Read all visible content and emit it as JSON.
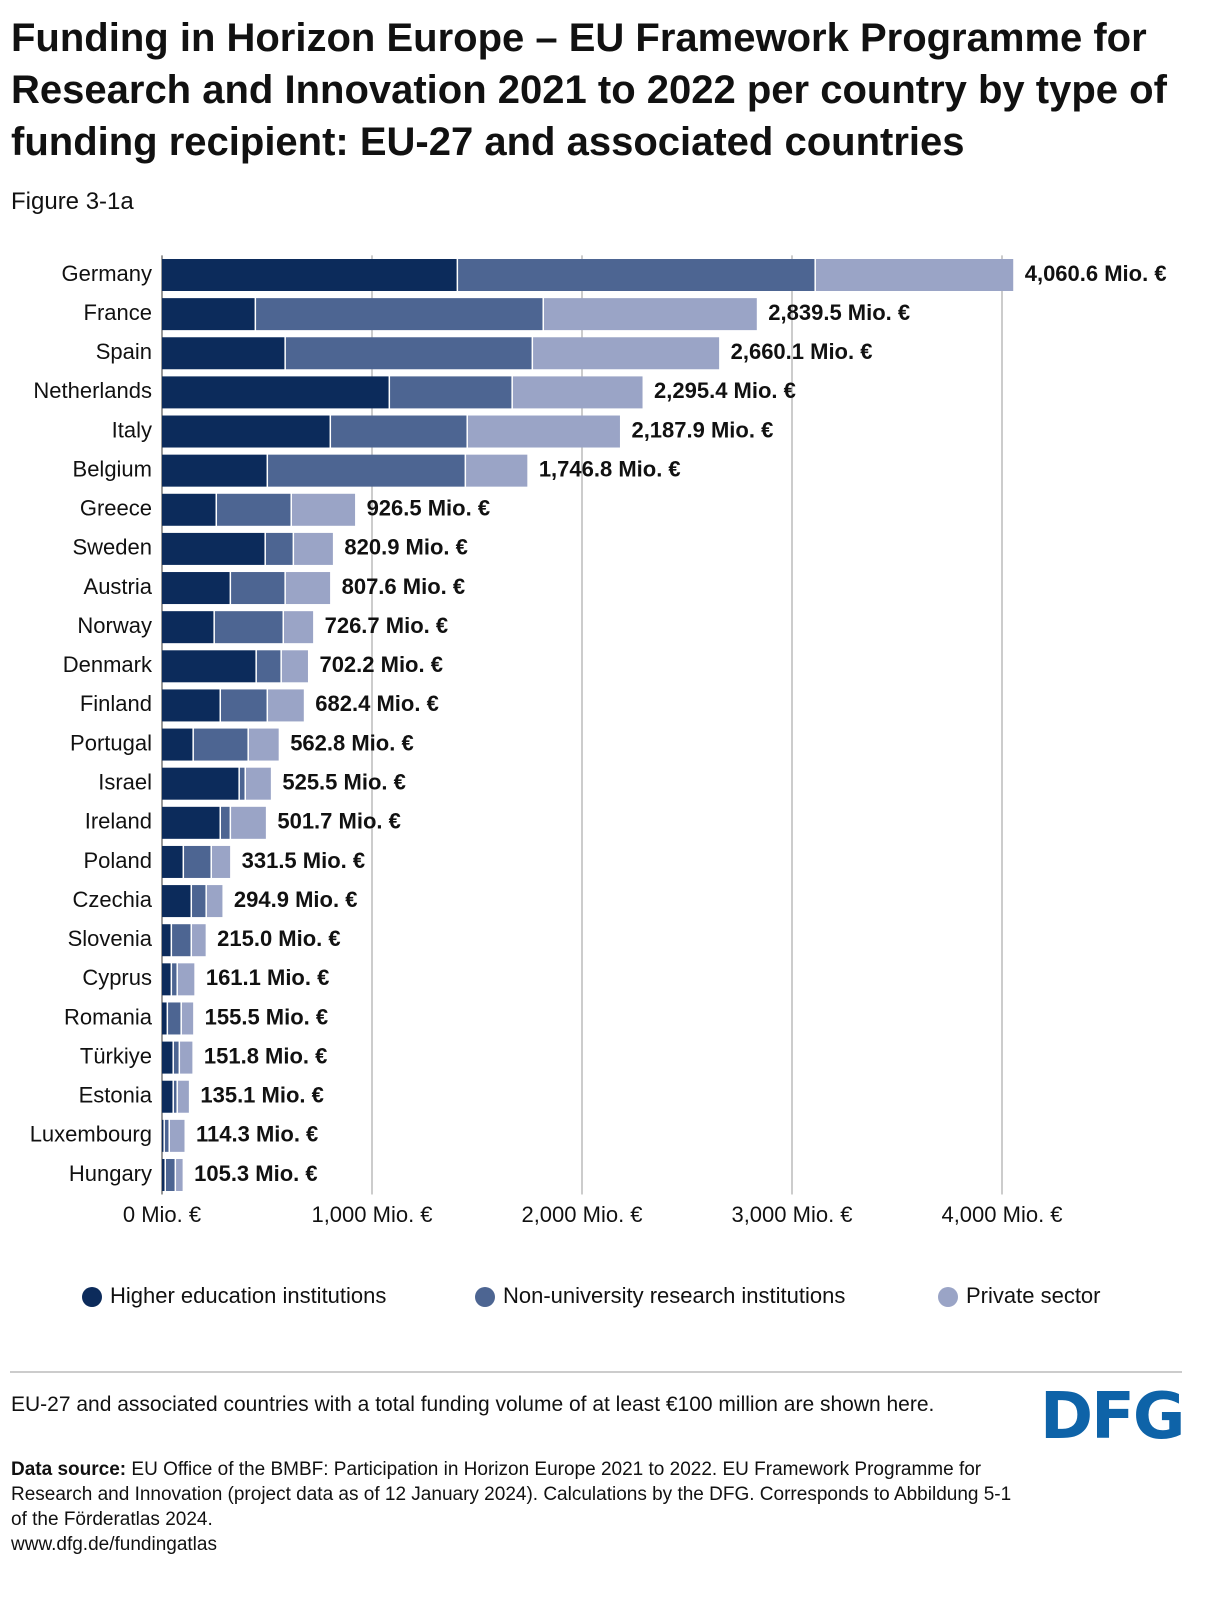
{
  "chart_data": {
    "type": "stacked-bar-horizontal",
    "title": "Funding in Horizon Europe – EU Framework Programme for Research and Innovation 2021 to 2022 per country by type of funding recipient: EU-27 and associated countries",
    "subtitle": "Figure 3-1a",
    "categories": [
      "Germany",
      "France",
      "Spain",
      "Netherlands",
      "Italy",
      "Belgium",
      "Greece",
      "Sweden",
      "Austria",
      "Norway",
      "Denmark",
      "Finland",
      "Portugal",
      "Israel",
      "Ireland",
      "Poland",
      "Czechia",
      "Slovenia",
      "Cyprus",
      "Romania",
      "Türkiye",
      "Estonia",
      "Luxembourg",
      "Hungary"
    ],
    "series": [
      {
        "name": "Higher education institutions",
        "color": "#0c2b5b",
        "values": [
          1410,
          448,
          590,
          1086,
          805,
          505,
          262,
          495,
          329,
          252,
          452,
          281,
          152,
          371,
          281,
          105,
          143,
          48,
          48,
          29,
          57,
          57,
          14,
          19
        ]
      },
      {
        "name": "Non-university research institutions",
        "color": "#4d6592",
        "values": [
          1704,
          1371,
          1177,
          585,
          652,
          943,
          357,
          134,
          261,
          329,
          119,
          224,
          262,
          29,
          48,
          133,
          71,
          95,
          28,
          66,
          29,
          19,
          24,
          48
        ]
      },
      {
        "name": "Private sector",
        "color": "#9aa4c6",
        "values": [
          946.6,
          1020.5,
          893.1,
          624.4,
          730.9,
          298.8,
          307.5,
          191.9,
          217.6,
          145.7,
          131.2,
          177.4,
          148.8,
          125.5,
          172.7,
          93.5,
          80.9,
          72,
          85.1,
          60.5,
          65.8,
          59.1,
          76.3,
          38.3
        ]
      }
    ],
    "totals": {
      "values": [
        4060.6,
        2839.5,
        2660.1,
        2295.4,
        2187.9,
        1746.8,
        926.5,
        820.9,
        807.6,
        726.7,
        702.2,
        682.4,
        562.8,
        525.5,
        501.7,
        331.5,
        294.9,
        215.0,
        161.1,
        155.5,
        151.8,
        135.1,
        114.3,
        105.3
      ],
      "value_labels": [
        "4,060.6 Mio. €",
        "2,839.5 Mio. €",
        "2,660.1 Mio. €",
        "2,295.4 Mio. €",
        "2,187.9 Mio. €",
        "1,746.8 Mio. €",
        "926.5 Mio. €",
        "820.9 Mio. €",
        "807.6 Mio. €",
        "726.7 Mio. €",
        "702.2 Mio. €",
        "682.4 Mio. €",
        "562.8 Mio. €",
        "525.5 Mio. €",
        "501.7 Mio. €",
        "331.5 Mio. €",
        "294.9 Mio. €",
        "215.0 Mio. €",
        "161.1 Mio. €",
        "155.5 Mio. €",
        "151.8 Mio. €",
        "135.1 Mio. €",
        "114.3 Mio. €",
        "105.3 Mio. €"
      ]
    },
    "xlim": [
      0,
      4000
    ],
    "xticks": [
      {
        "value": 0,
        "label": "0 Mio. €"
      },
      {
        "value": 1000,
        "label": "1,000 Mio. €"
      },
      {
        "value": 2000,
        "label": "2,000 Mio. €"
      },
      {
        "value": 3000,
        "label": "3,000 Mio. €"
      },
      {
        "value": 4000,
        "label": "4,000 Mio. €"
      }
    ],
    "grid": true,
    "legend": "bottom"
  },
  "footer": {
    "note": "EU-27 and associated countries with a total funding volume of at least €100 million are shown here.",
    "source_label": "Data source:",
    "source_text": "EU Office of the BMBF: Participation in Horizon Europe 2021 to 2022. EU Framework Programme for Research and Innovation (project data as of 12 January 2024). Calculations by the DFG. Corresponds to Abbildung 5-1 of the Förderatlas 2024.",
    "url": "www.dfg.de/fundingatlas",
    "logo": "DFG"
  }
}
